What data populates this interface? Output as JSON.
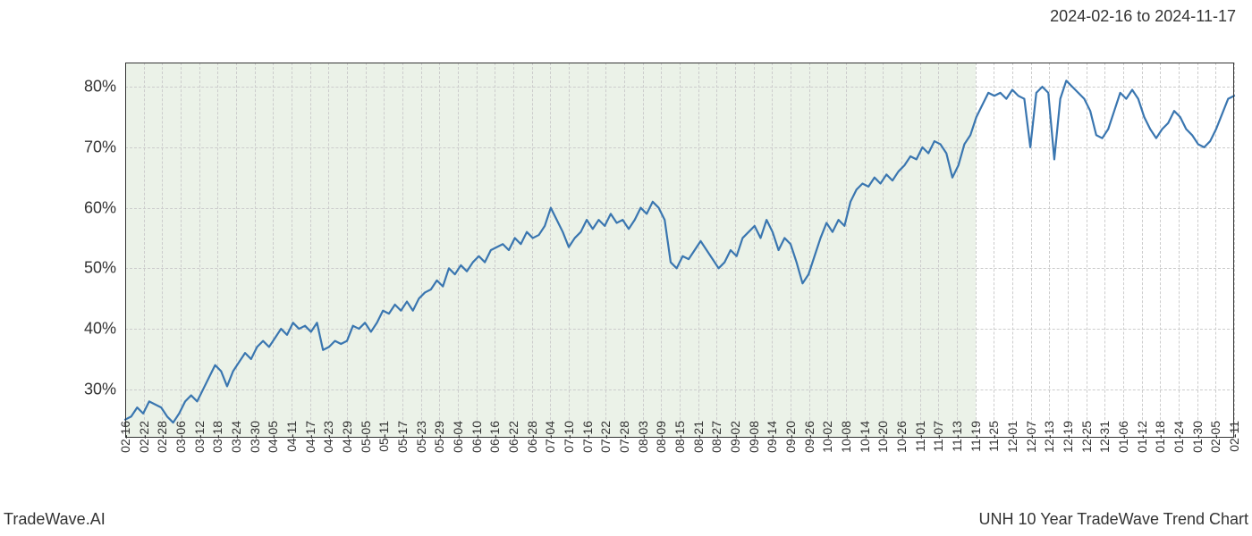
{
  "date_range": "2024-02-16 to 2024-11-17",
  "footer_left": "TradeWave.AI",
  "footer_right": "UNH 10 Year TradeWave Trend Chart",
  "chart": {
    "type": "line",
    "background_color": "#ffffff",
    "grid_color": "#cccccc",
    "grid_style": "dashed",
    "line_color": "#3a76b0",
    "line_width": 2.2,
    "shade_color": "#e8f0e4",
    "shade_opacity": 0.85,
    "shade_start_index": 0,
    "shade_end_index": 46,
    "label_fontsize": 18,
    "xtick_fontsize": 14,
    "tick_label_color": "#333333",
    "ylim": [
      22,
      84
    ],
    "yticks": [
      30,
      40,
      50,
      60,
      70,
      80
    ],
    "ytick_labels": [
      "30%",
      "40%",
      "50%",
      "60%",
      "70%",
      "80%"
    ],
    "x_labels": [
      "02-16",
      "02-22",
      "02-28",
      "03-06",
      "03-12",
      "03-18",
      "03-24",
      "03-30",
      "04-05",
      "04-11",
      "04-17",
      "04-23",
      "04-29",
      "05-05",
      "05-11",
      "05-17",
      "05-23",
      "05-29",
      "06-04",
      "06-10",
      "06-16",
      "06-22",
      "06-28",
      "07-04",
      "07-10",
      "07-16",
      "07-22",
      "07-28",
      "08-03",
      "08-09",
      "08-15",
      "08-21",
      "08-27",
      "09-02",
      "09-08",
      "09-14",
      "09-20",
      "09-26",
      "10-02",
      "10-08",
      "10-14",
      "10-20",
      "10-26",
      "11-01",
      "11-07",
      "11-13",
      "11-19",
      "11-25",
      "12-01",
      "12-07",
      "12-13",
      "12-19",
      "12-25",
      "12-31",
      "01-06",
      "01-12",
      "01-18",
      "01-24",
      "01-30",
      "02-05",
      "02-11"
    ],
    "values": [
      25,
      25.5,
      27,
      26,
      28,
      27.5,
      27,
      25.5,
      24.5,
      26,
      28,
      29,
      28,
      30,
      32,
      34,
      33,
      30.5,
      33,
      34.5,
      36,
      35,
      37,
      38,
      37,
      38.5,
      40,
      39,
      41,
      40,
      40.5,
      39.5,
      41,
      36.5,
      37,
      38,
      37.5,
      38,
      40.5,
      40,
      41,
      39.5,
      41,
      43,
      42.5,
      44,
      43,
      44.5,
      43,
      45,
      46,
      46.5,
      48,
      47,
      50,
      49,
      50.5,
      49.5,
      51,
      52,
      51,
      53,
      53.5,
      54,
      53,
      55,
      54,
      56,
      55,
      55.5,
      57,
      60,
      58,
      56,
      53.5,
      55,
      56,
      58,
      56.5,
      58,
      57,
      59,
      57.5,
      58,
      56.5,
      58,
      60,
      59,
      61,
      60,
      58,
      51,
      50,
      52,
      51.5,
      53,
      54.5,
      53,
      51.5,
      50,
      51,
      53,
      52,
      55,
      56,
      57,
      55,
      58,
      56,
      53,
      55,
      54,
      51,
      47.5,
      49,
      52,
      55,
      57.5,
      56,
      58,
      57,
      61,
      63,
      64,
      63.5,
      65,
      64,
      65.5,
      64.5,
      66,
      67,
      68.5,
      68,
      70,
      69,
      71,
      70.5,
      69,
      65,
      67,
      70.5,
      72,
      75,
      77,
      79,
      78.5,
      79,
      78,
      79.5,
      78.5,
      78,
      70,
      79,
      80,
      79,
      68,
      78,
      81,
      80,
      79,
      78,
      76,
      72,
      71.5,
      73,
      76,
      79,
      78,
      79.5,
      78,
      75,
      73,
      71.5,
      73,
      74,
      76,
      75,
      73,
      72,
      70.5,
      70,
      71,
      73,
      75.5,
      78,
      78.5
    ]
  }
}
